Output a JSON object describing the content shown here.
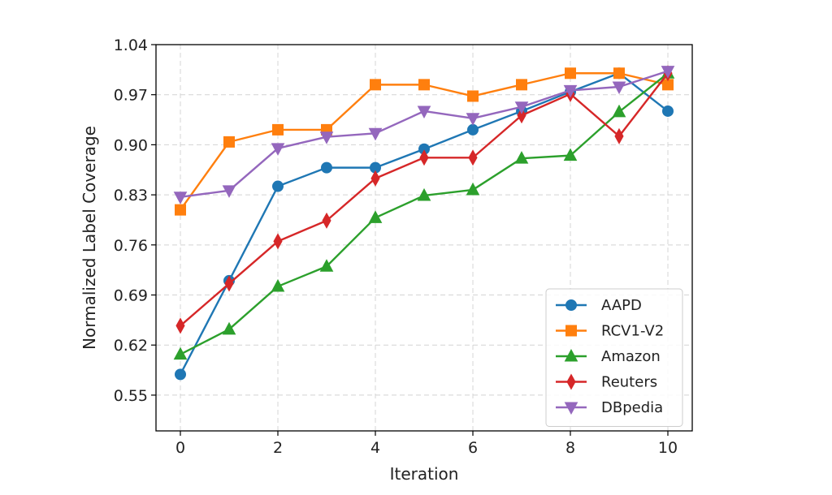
{
  "chart_data": {
    "type": "line",
    "xlabel": "Iteration",
    "ylabel": "Normalized Label Coverage",
    "xlim": [
      -0.5,
      10.5
    ],
    "ylim": [
      0.5,
      1.04
    ],
    "xticks": [
      0,
      2,
      4,
      6,
      8,
      10
    ],
    "yticks": [
      0.55,
      0.62,
      0.69,
      0.76,
      0.83,
      0.9,
      0.97,
      1.04
    ],
    "ytick_labels": [
      "0.55",
      "0.62",
      "0.69",
      "0.76",
      "0.83",
      "0.90",
      "0.97",
      "1.04"
    ],
    "grid": true,
    "legend_position": "bottom-right",
    "x": [
      0,
      1,
      2,
      3,
      4,
      5,
      6,
      7,
      8,
      9,
      10
    ],
    "series": [
      {
        "name": "AAPD",
        "color": "#1f77b4",
        "marker": "circle",
        "values": [
          0.579,
          0.71,
          0.842,
          0.868,
          0.868,
          0.894,
          0.921,
          0.947,
          0.974,
          1.0,
          0.947
        ]
      },
      {
        "name": "RCV1-V2",
        "color": "#ff7f0e",
        "marker": "square",
        "values": [
          0.809,
          0.904,
          0.921,
          0.921,
          0.984,
          0.984,
          0.968,
          0.984,
          1.0,
          1.0,
          0.984
        ]
      },
      {
        "name": "Amazon",
        "color": "#2ca02c",
        "marker": "triangle-up",
        "values": [
          0.607,
          0.642,
          0.702,
          0.73,
          0.798,
          0.829,
          0.837,
          0.881,
          0.885,
          0.946,
          1.0
        ]
      },
      {
        "name": "Reuters",
        "color": "#d62728",
        "marker": "thin-diamond",
        "values": [
          0.647,
          0.706,
          0.765,
          0.794,
          0.853,
          0.882,
          0.882,
          0.941,
          0.971,
          0.912,
          1.0
        ]
      },
      {
        "name": "DBpedia",
        "color": "#9467bd",
        "marker": "triangle-down",
        "values": [
          0.827,
          0.836,
          0.895,
          0.911,
          0.916,
          0.947,
          0.937,
          0.953,
          0.976,
          0.981,
          1.003
        ]
      }
    ]
  }
}
